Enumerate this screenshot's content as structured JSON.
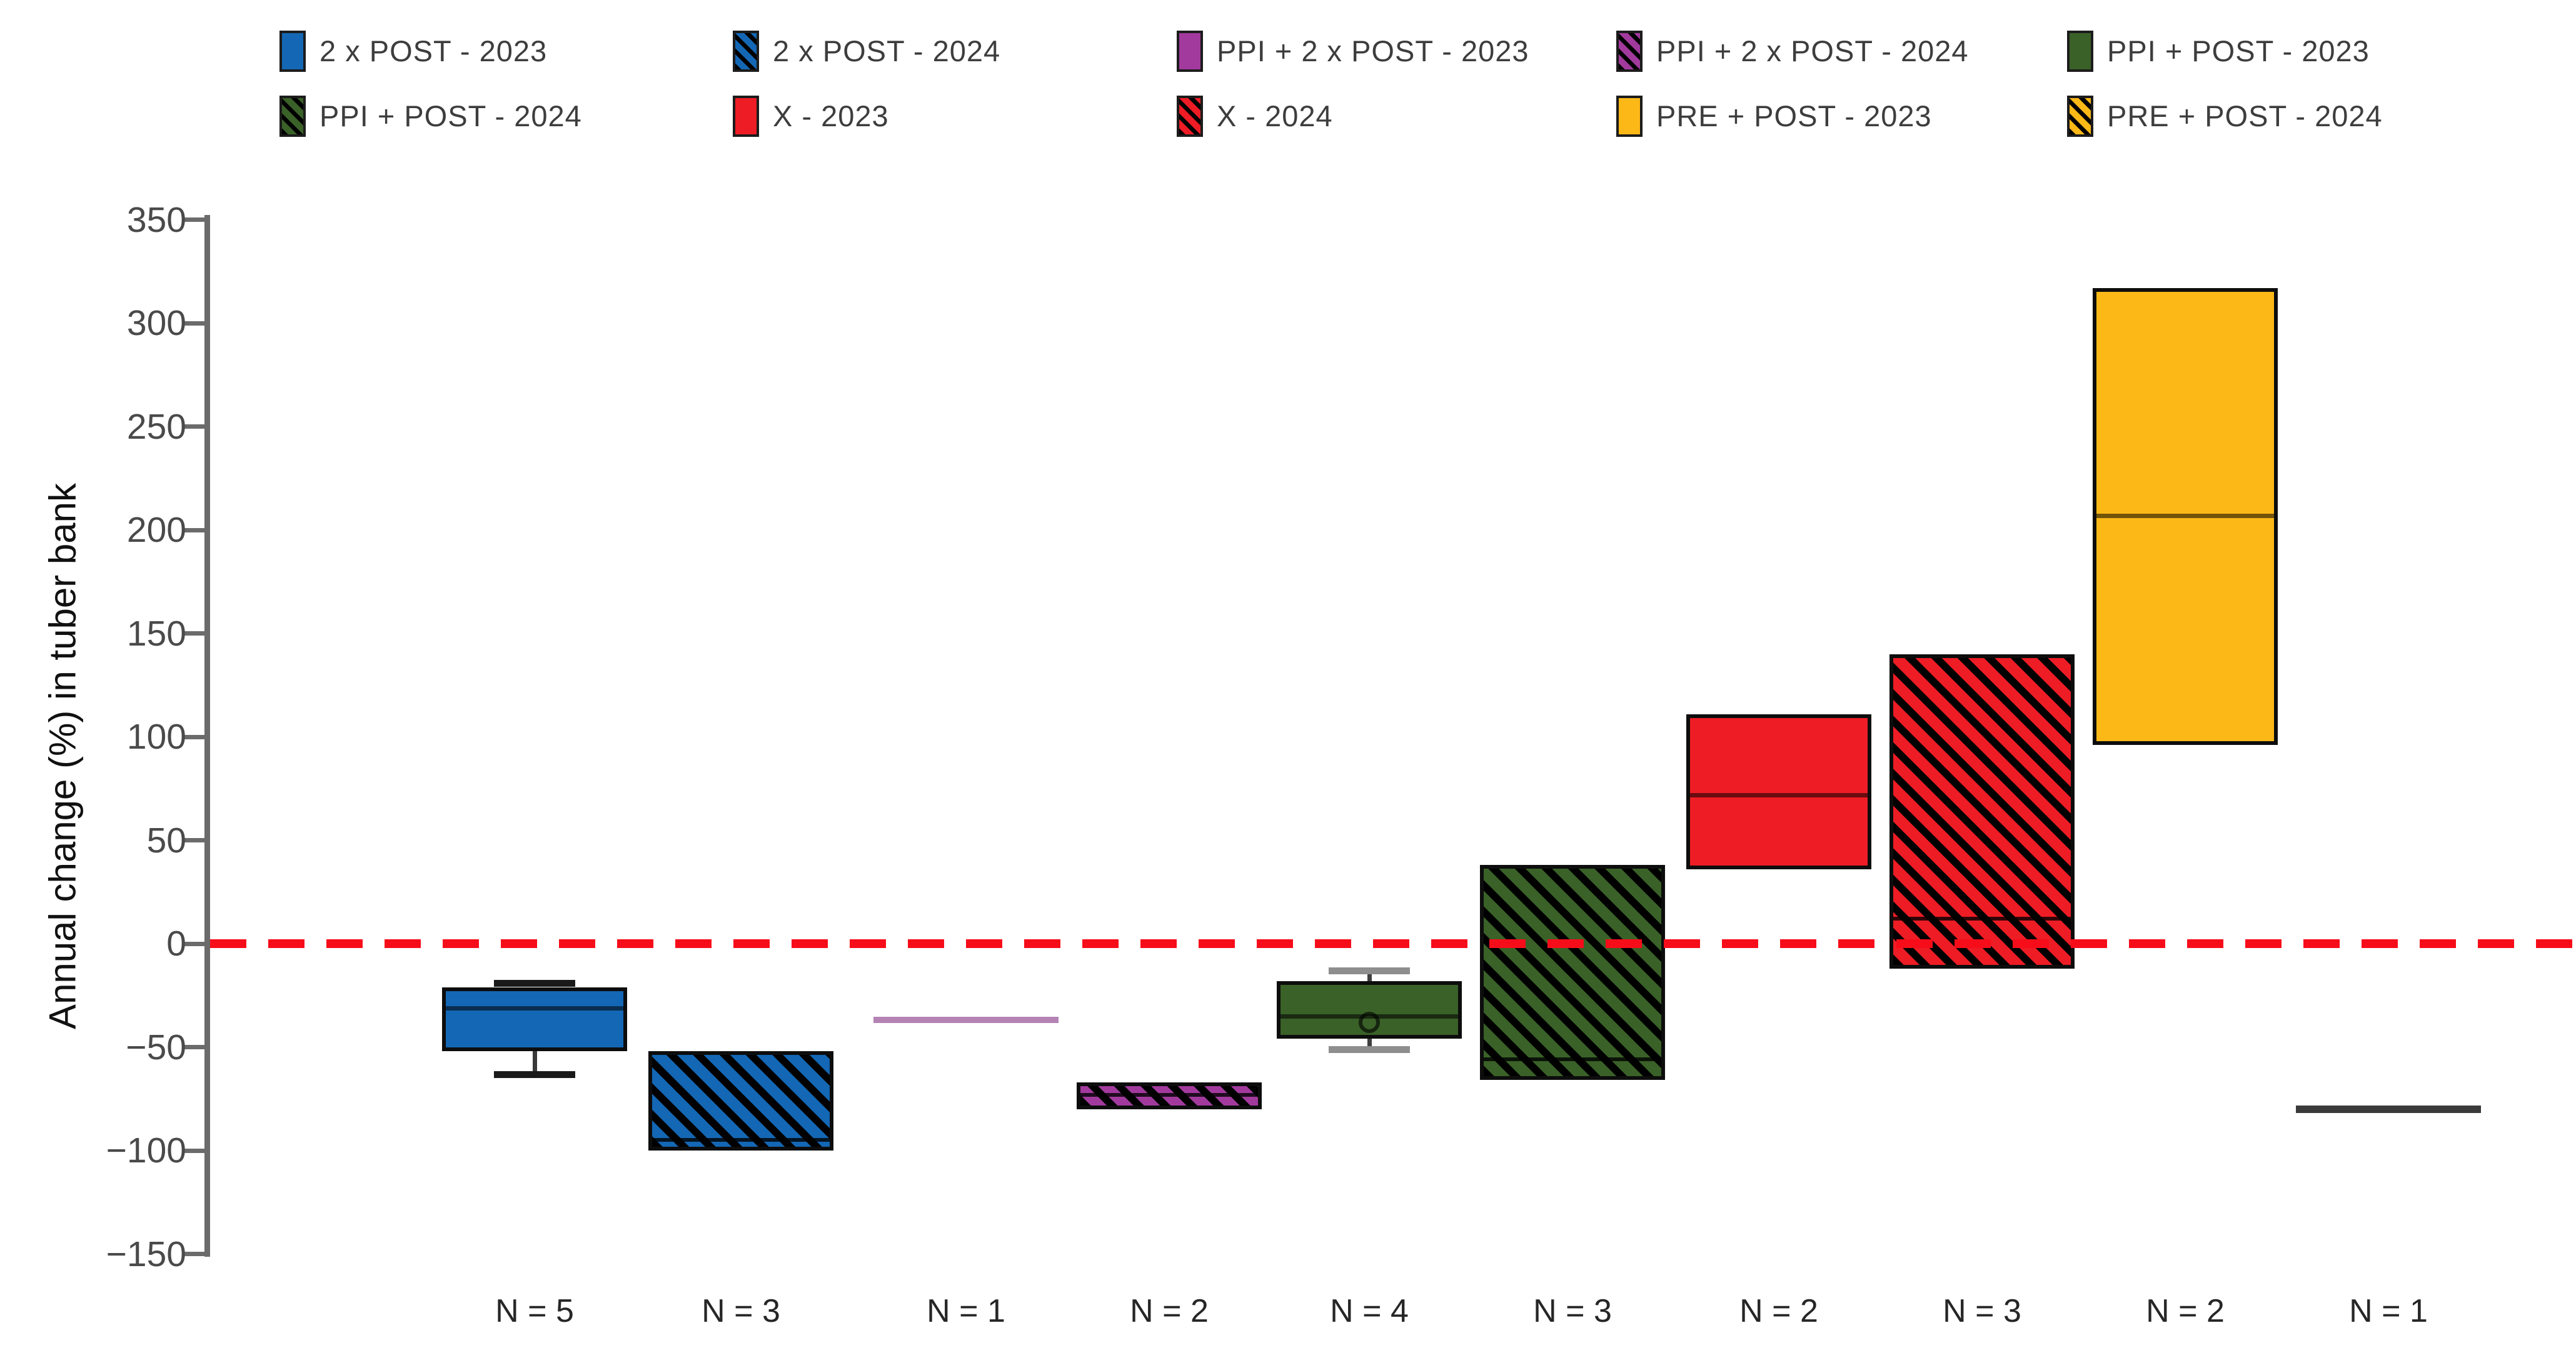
{
  "figure": {
    "background": "#ffffff",
    "ui_colors": {
      "axis": "#6b6b6b",
      "tick_label": "#4a4a4a",
      "axis_title": "#111111",
      "n_label": "#262626",
      "legend_text": "#3d3d3d",
      "zero_line": "#f70d1a",
      "box_border": "#0d0d0d"
    }
  },
  "legend": {
    "items": [
      {
        "label": "2 x POST - 2023",
        "color": "#1467b4",
        "hatched": false
      },
      {
        "label": "2 x POST - 2024",
        "color": "#1467b4",
        "hatched": true
      },
      {
        "label": "PPI + 2 x POST - 2023",
        "color": "#a23a9e",
        "hatched": false
      },
      {
        "label": "PPI + 2 x POST - 2024",
        "color": "#a23a9e",
        "hatched": true
      },
      {
        "label": "PPI + POST - 2023",
        "color": "#3a6128",
        "hatched": false
      },
      {
        "label": "PPI + POST - 2024",
        "color": "#3a6128",
        "hatched": true
      },
      {
        "label": "X - 2023",
        "color": "#ee1c25",
        "hatched": false
      },
      {
        "label": "X - 2024",
        "color": "#ee1c25",
        "hatched": true
      },
      {
        "label": "PRE + POST - 2023",
        "color": "#fcb817",
        "hatched": false
      },
      {
        "label": "PRE + POST - 2024",
        "color": "#fcb817",
        "hatched": true
      }
    ]
  },
  "chart_data": {
    "type": "box",
    "title": "",
    "ylabel": "Annual change (%) in tuber bank",
    "ylim": [
      -150,
      350
    ],
    "yticks": [
      350,
      300,
      250,
      200,
      150,
      100,
      50,
      0,
      -50,
      -100,
      -150
    ],
    "grid": false,
    "zero_line": {
      "value": 0,
      "color": "#f70d1a",
      "style": "dashed"
    },
    "categories": [
      "N = 5",
      "N = 3",
      "N = 1",
      "N = 2",
      "N = 4",
      "N = 3",
      "N = 2",
      "N = 3",
      "N = 2",
      "N = 1"
    ],
    "groups": [
      {
        "name": "2 x POST - 2023",
        "n_label": "N = 5",
        "type": "box",
        "color": "#1467b4",
        "hatched": false,
        "q3": -21,
        "median": -31,
        "q1": -52,
        "whisker_high": -19,
        "whisker_low": -63,
        "whisker_cap_color": "#1a1a1a",
        "whisker_stem_color": "#3a3a3a"
      },
      {
        "name": "2 x POST - 2024",
        "n_label": "N = 3",
        "type": "box",
        "color": "#1467b4",
        "hatched": true,
        "q3": -52,
        "median": -95,
        "q1": -100
      },
      {
        "name": "PPI + 2 x POST - 2023",
        "n_label": "N = 1",
        "type": "line",
        "value": -37,
        "color": "#a23a9e",
        "draw_color": "#b483b4",
        "thickness": 10
      },
      {
        "name": "PPI + 2 x POST - 2024",
        "n_label": "N = 2",
        "type": "box",
        "color": "#a23a9e",
        "hatched": true,
        "q3": -67,
        "median": -73,
        "q1": -80
      },
      {
        "name": "PPI + POST - 2023",
        "n_label": "N = 4",
        "type": "box",
        "color": "#3a6128",
        "hatched": false,
        "q3": -18,
        "median": -35,
        "q1": -46,
        "whisker_high": -13,
        "whisker_low": -51,
        "mean": -38,
        "whisker_cap_color": "#8e8e8e",
        "whisker_stem_color": "#404040"
      },
      {
        "name": "PPI + POST - 2024",
        "n_label": "N = 3",
        "type": "box",
        "color": "#3a6128",
        "hatched": true,
        "q3": 38,
        "median": -56,
        "q1": -66
      },
      {
        "name": "X - 2023",
        "n_label": "N = 2",
        "type": "box",
        "color": "#ee1c25",
        "hatched": false,
        "q3": 111,
        "median": 72,
        "q1": 36
      },
      {
        "name": "X - 2024",
        "n_label": "N = 3",
        "type": "box",
        "color": "#ee1c25",
        "hatched": true,
        "q3": 140,
        "median": 12,
        "q1": -12
      },
      {
        "name": "PRE + POST - 2023",
        "n_label": "N = 2",
        "type": "box",
        "color": "#fcb817",
        "hatched": false,
        "q3": 317,
        "median": 207,
        "q1": 96
      },
      {
        "name": "PRE + POST - 2024",
        "n_label": "N = 1",
        "type": "line",
        "value": -80,
        "color": "#fcb817",
        "draw_color": "#3a3a3a",
        "thickness": 12
      }
    ]
  }
}
